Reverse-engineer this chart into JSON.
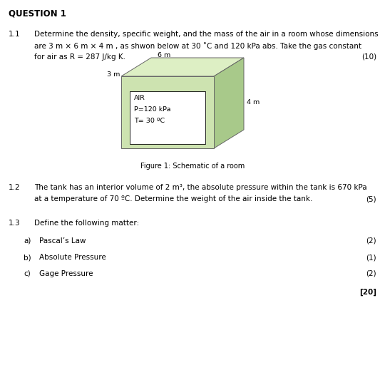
{
  "title": "QUESTION 1",
  "q11_label": "1.1",
  "q11_text_line1": "Determine the density, specific weight, and the mass of the air in a room whose dimensions",
  "q11_text_line2": "are 3 m × 6 m × 4 m , as shwon below at 30 ˚C and 120 kPa abs. Take the gas constant",
  "q11_text_line3": "for air as R = 287 J/kg K.",
  "q11_marks": "(10)",
  "fig_caption": "Figure 1: Schematic of a room",
  "air_label": "AIR",
  "pressure_label": "P=120 kPa",
  "temp_label": "T= 30 ºC",
  "dim_3m": "3 m",
  "dim_6m": "6 m",
  "dim_4m": "4 m",
  "q12_label": "1.2",
  "q12_text_line1": "The tank has an interior volume of 2 m³, the absolute pressure within the tank is 670 kPa",
  "q12_text_line2": "at a temperature of 70 ºC. Determine the weight of the air inside the tank.",
  "q12_marks": "(5)",
  "q13_label": "1.3",
  "q13_text": "Define the following matter:",
  "qa_label": "a)",
  "qa_text": "Pascal’s Law",
  "qa_marks": "(2)",
  "qb_label": "b)",
  "qb_text": "Absolute Pressure",
  "qb_marks": "(1)",
  "qc_label": "c)",
  "qc_text": "Gage Pressure",
  "qc_marks": "(2)",
  "total_marks": "[20]",
  "bg_color": "#ffffff",
  "box_face_color": "#cde3b0",
  "box_side_color": "#a8c98a",
  "box_top_color": "#ddefc4",
  "box_border_color": "#666666",
  "text_color": "#000000"
}
